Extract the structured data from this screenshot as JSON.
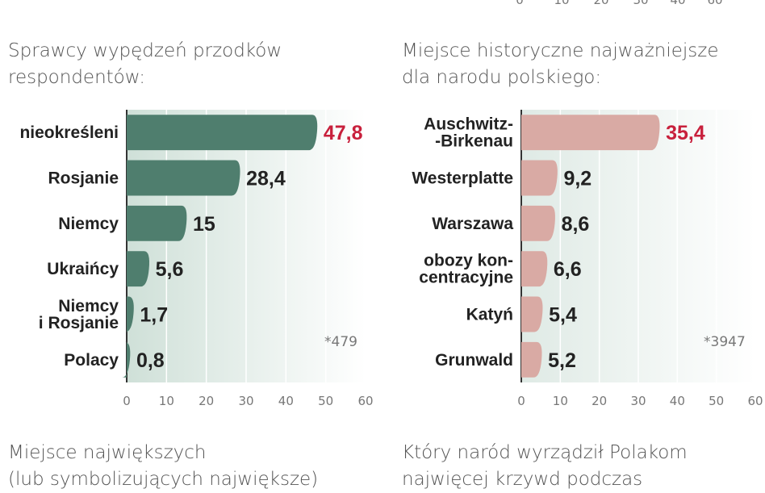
{
  "top_axis_ticks": [
    "0",
    "10",
    "20",
    "30",
    "40",
    "60"
  ],
  "chart_data": [
    {
      "type": "bar",
      "orientation": "horizontal",
      "title": "Sprawcy wypędzeń przodków\nrespondentów:",
      "categories": [
        "nieokreśleni",
        "Rosjanie",
        "Niemcy",
        "Ukraińcy",
        "Niemcy\ni Rosjanie",
        "Polacy"
      ],
      "values": [
        47.8,
        28.4,
        15,
        5.6,
        1.7,
        0.8
      ],
      "value_labels": [
        "47,8",
        "28,4",
        "15",
        "5,6",
        "1,7",
        "0,8"
      ],
      "highlight_index": 0,
      "xlim": [
        0,
        60
      ],
      "ticks": [
        "0",
        "10",
        "20",
        "30",
        "40",
        "50",
        "60"
      ],
      "note": "*479",
      "grid": true,
      "bar_color": "#4f7e6e",
      "highlight_color": "#c8203c"
    },
    {
      "type": "bar",
      "orientation": "horizontal",
      "title": "Miejsce historyczne najważniejsze\ndla narodu polskiego:",
      "categories": [
        "Auschwitz-\n-Birkenau",
        "Westerplatte",
        "Warszawa",
        "obozy kon-\ncentracyjne",
        "Katyń",
        "Grunwald"
      ],
      "values": [
        35.4,
        9.2,
        8.6,
        6.6,
        5.4,
        5.2
      ],
      "value_labels": [
        "35,4",
        "9,2",
        "8,6",
        "6,6",
        "5,4",
        "5,2"
      ],
      "highlight_index": 0,
      "xlim": [
        0,
        60
      ],
      "ticks": [
        "0",
        "10",
        "20",
        "30",
        "40",
        "50",
        "60"
      ],
      "note": "*3947",
      "grid": true,
      "bar_color": "#d9aaa4",
      "highlight_color": "#c8203c"
    }
  ],
  "bottom_left_title": "Miejsce największych\n(lub symbolizujących największe)",
  "bottom_right_title": "Który naród wyrządził Polakom\nnajwięcej krzywd podczas"
}
